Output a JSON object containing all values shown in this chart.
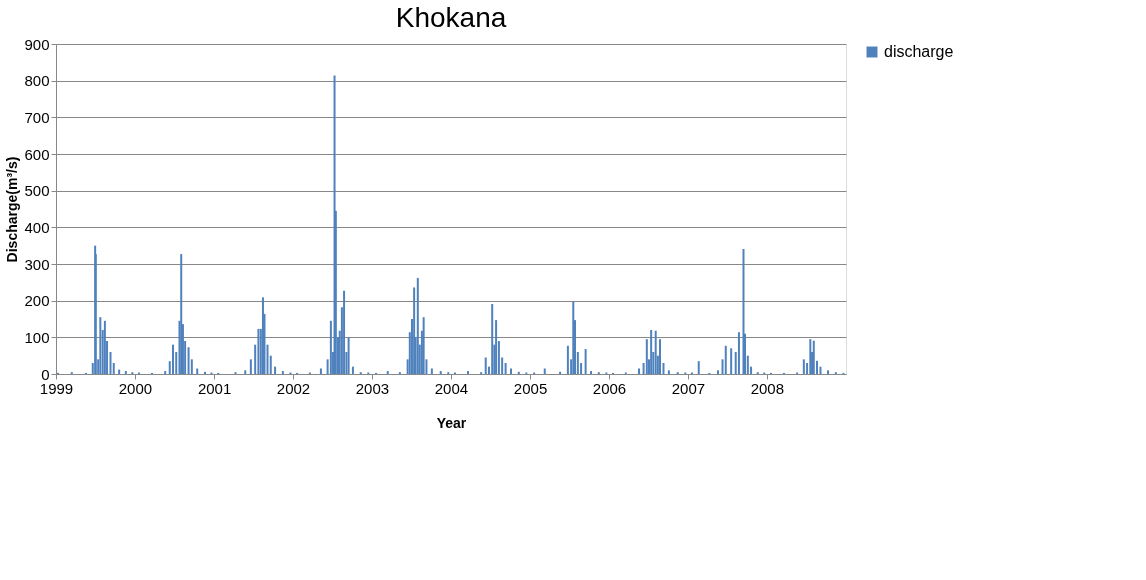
{
  "chart_data": {
    "type": "bar",
    "title": "Khokana",
    "xlabel": "Year",
    "ylabel": "Discharge(m³/s)",
    "xlim": [
      "1999-01-01",
      "2009-01-01"
    ],
    "xticks": [
      "1999",
      "2000",
      "2001",
      "2002",
      "2003",
      "2004",
      "2005",
      "2006",
      "2007",
      "2008"
    ],
    "ylim": [
      0,
      900
    ],
    "yticks": [
      0,
      100,
      200,
      300,
      400,
      500,
      600,
      700,
      800,
      900
    ],
    "grid": "y",
    "legend": "right",
    "series": [
      {
        "name": "discharge",
        "color": "#4f81bd",
        "x": [
          "1999-01-10",
          "1999-03-15",
          "1999-05-20",
          "1999-06-20",
          "1999-07-01",
          "1999-07-04",
          "1999-07-15",
          "1999-07-25",
          "1999-08-05",
          "1999-08-15",
          "1999-08-25",
          "1999-09-10",
          "1999-09-25",
          "1999-10-20",
          "1999-11-20",
          "1999-12-20",
          "2000-01-20",
          "2000-03-20",
          "2000-05-20",
          "2000-06-10",
          "2000-06-25",
          "2000-07-10",
          "2000-07-25",
          "2000-08-02",
          "2000-08-10",
          "2000-08-20",
          "2000-09-05",
          "2000-09-20",
          "2000-10-15",
          "2000-11-20",
          "2000-12-20",
          "2001-01-20",
          "2001-04-10",
          "2001-05-25",
          "2001-06-20",
          "2001-07-10",
          "2001-07-25",
          "2001-08-05",
          "2001-08-15",
          "2001-08-22",
          "2001-09-05",
          "2001-09-20",
          "2001-10-10",
          "2001-11-15",
          "2001-12-20",
          "2002-01-20",
          "2002-03-20",
          "2002-05-10",
          "2002-06-10",
          "2002-06-25",
          "2002-07-05",
          "2002-07-12",
          "2002-07-18",
          "2002-07-28",
          "2002-08-05",
          "2002-08-15",
          "2002-08-25",
          "2002-09-05",
          "2002-09-15",
          "2002-10-05",
          "2002-11-10",
          "2002-12-15",
          "2003-01-20",
          "2003-03-15",
          "2003-05-10",
          "2003-06-15",
          "2003-06-25",
          "2003-07-05",
          "2003-07-15",
          "2003-07-22",
          "2003-08-01",
          "2003-08-10",
          "2003-08-20",
          "2003-08-28",
          "2003-09-10",
          "2003-10-05",
          "2003-11-15",
          "2003-12-20",
          "2004-01-20",
          "2004-03-20",
          "2004-05-20",
          "2004-06-10",
          "2004-06-25",
          "2004-07-10",
          "2004-07-20",
          "2004-07-28",
          "2004-08-10",
          "2004-08-25",
          "2004-09-10",
          "2004-10-05",
          "2004-11-10",
          "2004-12-15",
          "2005-01-20",
          "2005-03-10",
          "2005-05-20",
          "2005-06-25",
          "2005-07-10",
          "2005-07-20",
          "2005-07-28",
          "2005-08-10",
          "2005-08-25",
          "2005-09-15",
          "2005-10-10",
          "2005-11-15",
          "2005-12-20",
          "2006-01-20",
          "2006-03-20",
          "2006-05-20",
          "2006-06-10",
          "2006-06-25",
          "2006-07-05",
          "2006-07-15",
          "2006-07-25",
          "2006-08-05",
          "2006-08-15",
          "2006-08-25",
          "2006-09-10",
          "2006-10-05",
          "2006-11-15",
          "2006-12-20",
          "2007-01-20",
          "2007-02-20",
          "2007-04-10",
          "2007-05-20",
          "2007-06-10",
          "2007-06-25",
          "2007-07-20",
          "2007-08-10",
          "2007-08-25",
          "2007-09-15",
          "2007-09-22",
          "2007-10-05",
          "2007-10-20",
          "2007-11-20",
          "2007-12-20",
          "2008-01-20",
          "2008-03-20",
          "2008-05-20",
          "2008-06-20",
          "2008-07-05",
          "2008-07-20",
          "2008-07-28",
          "2008-08-05",
          "2008-08-20",
          "2008-09-05",
          "2008-10-10",
          "2008-11-15",
          "2008-12-20"
        ],
        "values": [
          3,
          5,
          3,
          30,
          350,
          327,
          40,
          155,
          120,
          145,
          90,
          60,
          30,
          12,
          8,
          5,
          4,
          3,
          8,
          35,
          80,
          60,
          145,
          327,
          136,
          90,
          73,
          40,
          15,
          6,
          4,
          3,
          5,
          10,
          40,
          80,
          123,
          123,
          209,
          164,
          80,
          50,
          20,
          8,
          4,
          3,
          4,
          15,
          40,
          145,
          60,
          814,
          445,
          100,
          118,
          182,
          227,
          60,
          100,
          20,
          5,
          4,
          3,
          8,
          5,
          40,
          114,
          150,
          236,
          100,
          262,
          80,
          118,
          155,
          40,
          15,
          8,
          5,
          4,
          8,
          5,
          45,
          20,
          191,
          80,
          147,
          90,
          45,
          30,
          15,
          6,
          4,
          4,
          15,
          6,
          77,
          40,
          198,
          147,
          60,
          30,
          68,
          8,
          5,
          4,
          3,
          4,
          15,
          30,
          95,
          40,
          120,
          60,
          118,
          50,
          95,
          30,
          10,
          5,
          4,
          4,
          35,
          3,
          10,
          40,
          77,
          70,
          60,
          114,
          341,
          110,
          50,
          20,
          5,
          4,
          3,
          3,
          4,
          40,
          30,
          95,
          60,
          91,
          36,
          20,
          10,
          5,
          3
        ]
      }
    ]
  }
}
